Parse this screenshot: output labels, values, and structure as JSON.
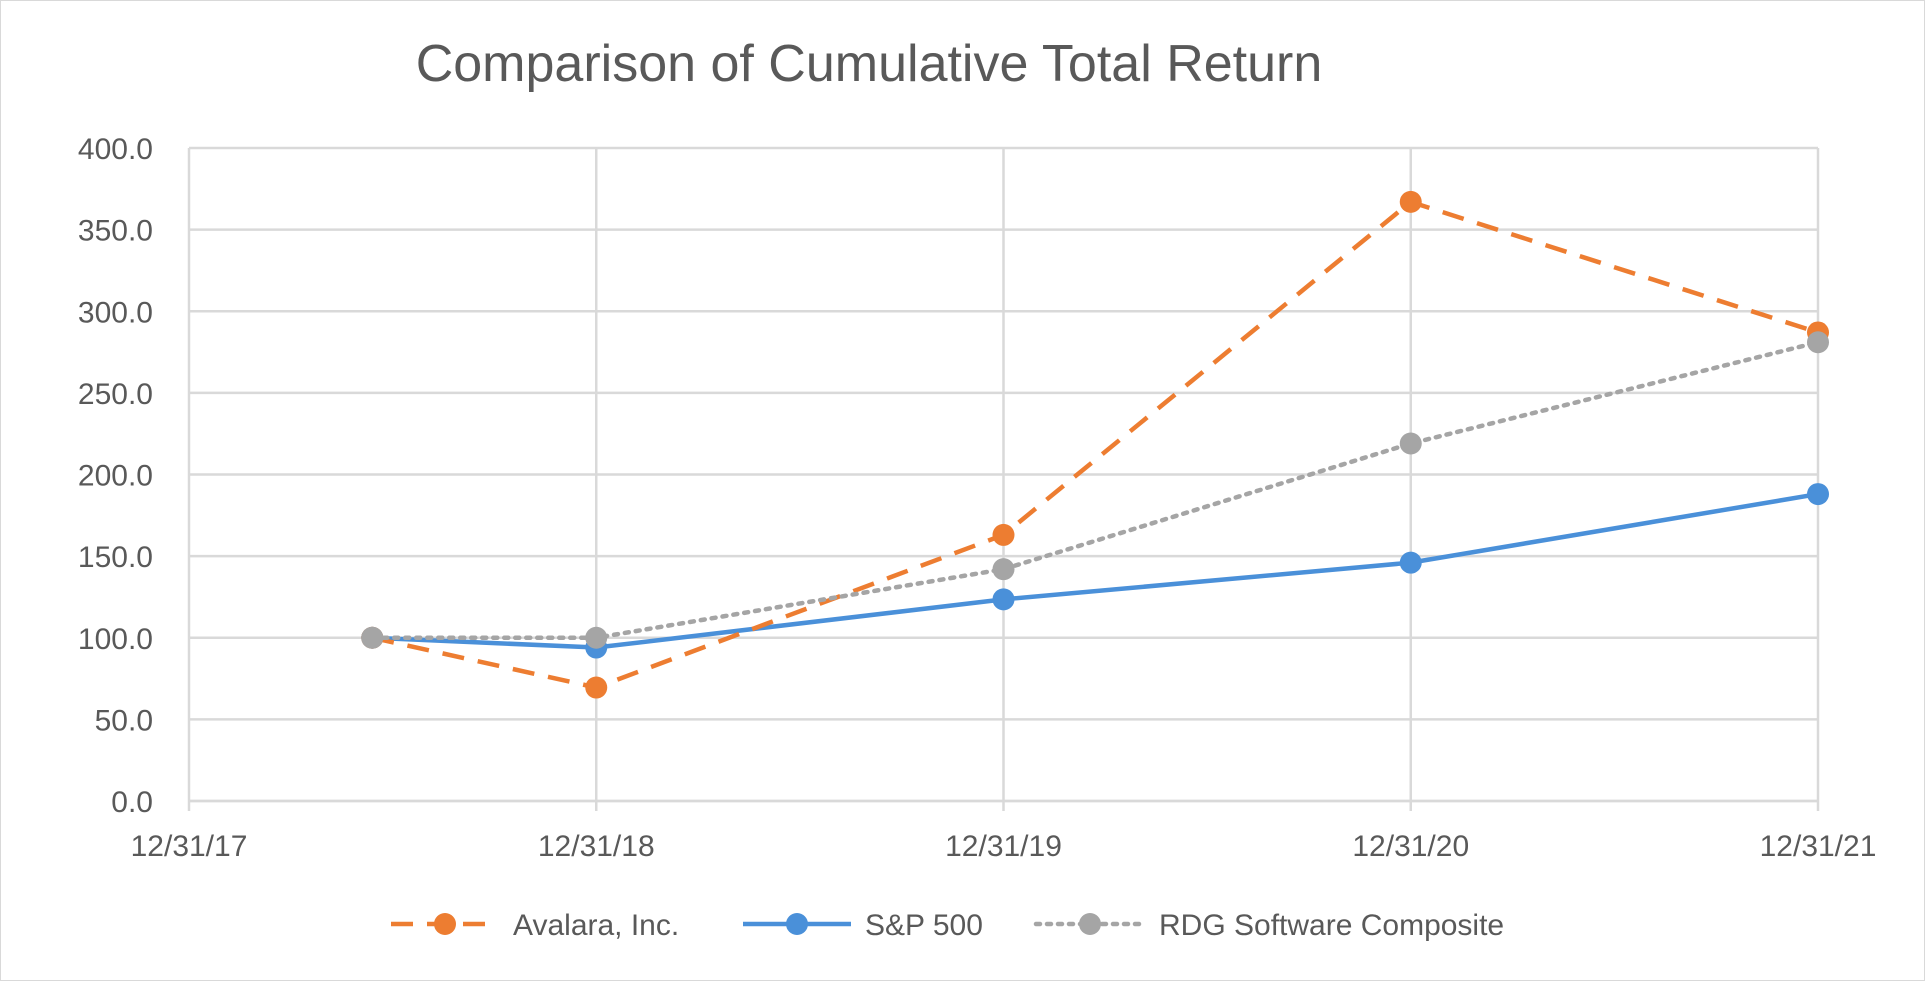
{
  "chart_data": {
    "type": "line",
    "title": "Comparison of Cumulative Total Return",
    "xlabel": "",
    "ylabel": "",
    "categories": [
      "12/31/17",
      "12/31/18",
      "12/31/19",
      "12/31/20",
      "12/31/21"
    ],
    "x_axis_range": [
      0,
      4
    ],
    "ylim": [
      0,
      400
    ],
    "y_ticks": [
      0,
      50,
      100,
      150,
      200,
      250,
      300,
      350,
      400
    ],
    "y_tick_labels": [
      "0.0",
      "50.0",
      "100.0",
      "150.0",
      "200.0",
      "250.0",
      "300.0",
      "350.0",
      "400.0"
    ],
    "grid": true,
    "legend_position": "bottom",
    "series": [
      {
        "name": "Avalara, Inc.",
        "color": "#ed7d31",
        "style": "dashed",
        "x": [
          0.45,
          1,
          2,
          3,
          4
        ],
        "values": [
          100.0,
          69.5,
          163.0,
          367.0,
          287.0
        ]
      },
      {
        "name": "S&P 500",
        "color": "#4a90d9",
        "style": "solid",
        "x": [
          0.45,
          1,
          2,
          3,
          4
        ],
        "values": [
          100.0,
          94.0,
          123.5,
          146.0,
          188.0
        ]
      },
      {
        "name": "RDG Software Composite",
        "color": "#a5a5a5",
        "style": "dotted",
        "x": [
          0.45,
          1,
          2,
          3,
          4
        ],
        "values": [
          100.0,
          100.0,
          142.0,
          219.0,
          281.0
        ]
      }
    ]
  }
}
